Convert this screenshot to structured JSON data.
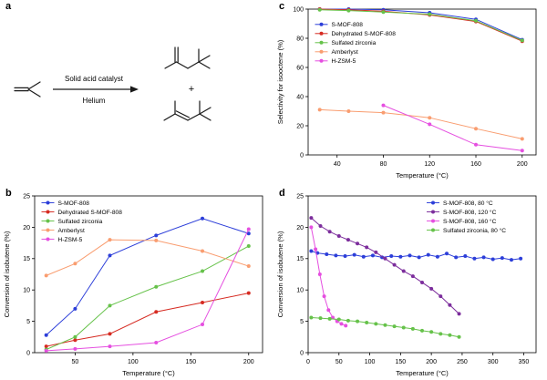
{
  "figure": {
    "panel_labels": {
      "a": "a",
      "b": "b",
      "c": "c",
      "d": "d"
    },
    "scheme": {
      "catalyst_text": "Solid acid catalyst",
      "carrier_text": "Helium",
      "plus": "+"
    }
  },
  "chart_data": [
    {
      "id": "b",
      "type": "line",
      "title": "",
      "xlabel": "Temperature (°C)",
      "ylabel": "Conversion of isobutene (%)",
      "xlim": [
        15,
        212
      ],
      "ylim": [
        0,
        25
      ],
      "xticks": [
        50,
        100,
        150,
        200
      ],
      "yticks": [
        0,
        5,
        10,
        15,
        20,
        25
      ],
      "grid": false,
      "legend_position": "upper-left",
      "legend": {
        "fx": 0.03,
        "fy": 0.02
      },
      "series": [
        {
          "name": "S-MOF-808",
          "color": "#2c3ed9",
          "x": [
            25,
            50,
            80,
            120,
            160,
            200
          ],
          "values": [
            2.8,
            7.0,
            15.5,
            18.7,
            21.4,
            19.0
          ]
        },
        {
          "name": "Dehydrated S-MOF-808",
          "color": "#d62b22",
          "x": [
            25,
            50,
            80,
            120,
            160,
            200
          ],
          "values": [
            1.0,
            2.0,
            3.0,
            6.5,
            8.0,
            9.5
          ]
        },
        {
          "name": "Sulfated zirconia",
          "color": "#66c24a",
          "x": [
            25,
            50,
            80,
            120,
            160,
            200
          ],
          "values": [
            0.5,
            2.5,
            7.5,
            10.5,
            13.0,
            17.0
          ]
        },
        {
          "name": "Amberlyst",
          "color": "#f99d70",
          "x": [
            25,
            50,
            80,
            120,
            160,
            200
          ],
          "values": [
            12.3,
            14.2,
            18.0,
            17.9,
            16.2,
            13.8
          ]
        },
        {
          "name": "H-ZSM-5",
          "color": "#e54fe0",
          "x": [
            25,
            50,
            80,
            120,
            160,
            200
          ],
          "values": [
            0.3,
            0.6,
            1.0,
            1.6,
            4.5,
            19.7
          ]
        }
      ]
    },
    {
      "id": "c",
      "type": "line",
      "title": "",
      "xlabel": "Temperature (°C)",
      "ylabel": "Selectivity for isooctene (%)",
      "xlim": [
        15,
        212
      ],
      "ylim": [
        0,
        100
      ],
      "xticks": [
        40,
        80,
        120,
        160,
        200
      ],
      "yticks": [
        0,
        20,
        40,
        60,
        80,
        100
      ],
      "grid": false,
      "legend_position": "upper-left",
      "legend": {
        "fx": 0.03,
        "fy": 0.08
      },
      "series": [
        {
          "name": "S-MOF-808",
          "color": "#2c3ed9",
          "x": [
            25,
            50,
            80,
            120,
            160,
            200
          ],
          "values": [
            100,
            100,
            99.5,
            97.5,
            93,
            79
          ]
        },
        {
          "name": "Dehydrated S-MOF-808",
          "color": "#d62b22",
          "x": [
            25,
            50,
            80,
            120,
            160,
            200
          ],
          "values": [
            100,
            99.5,
            98.5,
            96,
            91.5,
            78
          ]
        },
        {
          "name": "Sulfated zirconia",
          "color": "#66c24a",
          "x": [
            25,
            50,
            80,
            120,
            160,
            200
          ],
          "values": [
            99.5,
            99,
            98,
            96.5,
            92,
            78.5
          ]
        },
        {
          "name": "Amberlyst",
          "color": "#f99d70",
          "x": [
            25,
            50,
            80,
            120,
            160,
            200
          ],
          "values": [
            31,
            30,
            29,
            25.5,
            18,
            11
          ]
        },
        {
          "name": "H-ZSM-5",
          "color": "#e54fe0",
          "x": [
            80,
            120,
            160,
            200
          ],
          "values": [
            34,
            21,
            7,
            3
          ]
        }
      ]
    },
    {
      "id": "d",
      "type": "line",
      "title": "",
      "xlabel": "Temperature (°C)",
      "ylabel": "Conversion of isobutene (%)",
      "xlim": [
        0,
        370
      ],
      "ylim": [
        0,
        25
      ],
      "xticks": [
        0,
        50,
        100,
        150,
        200,
        250,
        300,
        350
      ],
      "yticks": [
        0,
        5,
        10,
        15,
        20,
        25
      ],
      "grid": false,
      "legend_position": "upper-right",
      "legend": {
        "fx": 0.52,
        "fy": 0.02
      },
      "series": [
        {
          "name": "S-MOF-808, 80 °C",
          "color": "#2c3ed9",
          "x": [
            5,
            15,
            30,
            45,
            60,
            75,
            90,
            105,
            120,
            135,
            150,
            165,
            180,
            195,
            210,
            225,
            240,
            255,
            270,
            285,
            300,
            315,
            330,
            345
          ],
          "values": [
            16.2,
            15.9,
            15.7,
            15.5,
            15.4,
            15.6,
            15.3,
            15.5,
            15.2,
            15.4,
            15.3,
            15.5,
            15.2,
            15.6,
            15.3,
            15.8,
            15.2,
            15.4,
            15.0,
            15.2,
            14.9,
            15.1,
            14.8,
            15.0
          ]
        },
        {
          "name": "S-MOF-808, 120 °C",
          "color": "#7c2d9c",
          "x": [
            5,
            20,
            35,
            50,
            65,
            80,
            95,
            110,
            125,
            140,
            155,
            170,
            185,
            200,
            215,
            230,
            245
          ],
          "values": [
            21.5,
            20.2,
            19.3,
            18.6,
            18.0,
            17.4,
            16.8,
            16.0,
            15.0,
            14.0,
            13.0,
            12.2,
            11.2,
            10.2,
            9.0,
            7.6,
            6.2
          ]
        },
        {
          "name": "S-MOF-808, 160 °C",
          "color": "#e54fe0",
          "x": [
            5,
            12,
            19,
            26,
            33,
            40,
            47,
            54,
            61
          ],
          "values": [
            20.0,
            16.5,
            12.5,
            9.0,
            6.8,
            5.6,
            5.0,
            4.6,
            4.3
          ]
        },
        {
          "name": "Sulfated zirconia, 80 °C",
          "color": "#66c24a",
          "x": [
            5,
            20,
            35,
            50,
            65,
            80,
            95,
            110,
            125,
            140,
            155,
            170,
            185,
            200,
            215,
            230,
            245
          ],
          "values": [
            5.6,
            5.5,
            5.4,
            5.3,
            5.1,
            5.0,
            4.8,
            4.6,
            4.4,
            4.2,
            4.0,
            3.8,
            3.5,
            3.3,
            3.0,
            2.8,
            2.5
          ]
        }
      ]
    }
  ]
}
